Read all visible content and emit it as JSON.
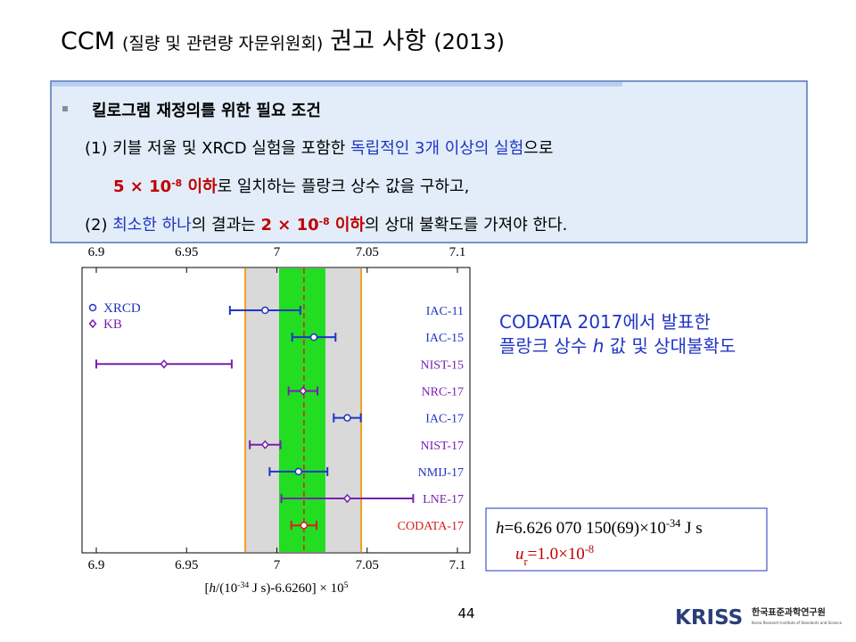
{
  "title": [
    {
      "text": "CCM",
      "size": 27
    },
    {
      "text": "(질량 및 관련량 자문위원회)",
      "size": 19
    },
    {
      "text": "권고 사항",
      "size": 27
    },
    {
      "text": "(2013)",
      "size": 24
    }
  ],
  "box": {
    "heading": "킬로그램 재정의를 위한 필요 조건",
    "lines": [
      [
        {
          "text": "(1) 키블 저울 및 XRCD 실험을 포함한 ",
          "style": "normal"
        },
        {
          "text": "독립적인 3개 이상의 실험",
          "style": "blue"
        },
        {
          "text": "으로",
          "style": "normal"
        }
      ],
      [
        {
          "text": "5 × 10",
          "style": "red"
        },
        {
          "text": "-8",
          "style": "red-sup"
        },
        {
          "text": " 이하",
          "style": "red"
        },
        {
          "text": "로 일치하는 플랑크 상수 값을 구하고,",
          "style": "normal"
        }
      ],
      [
        {
          "text": "(2) ",
          "style": "normal"
        },
        {
          "text": "최소한 하나",
          "style": "blue"
        },
        {
          "text": "의 결과는 ",
          "style": "normal"
        },
        {
          "text": "2 × 10",
          "style": "red"
        },
        {
          "text": "-8",
          "style": "red-sup"
        },
        {
          "text": " 이하",
          "style": "red"
        },
        {
          "text": "의 상대 불확도를 가져야 한다.",
          "style": "normal"
        }
      ]
    ]
  },
  "note": [
    [
      {
        "text": "CODATA 2017에서 발표한",
        "style": "normal"
      }
    ],
    [
      {
        "text": "플랑크 상수 ",
        "style": "normal"
      },
      {
        "text": "h",
        "style": "italic"
      },
      {
        "text": " 값 및 상대불확도",
        "style": "normal"
      }
    ]
  ],
  "result": [
    [
      {
        "text": "h",
        "style": "italic"
      },
      {
        "text": "=6.626 070 150(69)×10",
        "style": "normal"
      },
      {
        "text": "-34",
        "style": "sup"
      },
      {
        "text": " J s",
        "style": "normal"
      }
    ],
    [
      {
        "text": "u",
        "style": "italic"
      },
      {
        "text": "r",
        "style": "sub"
      },
      {
        "text": "=1.0×10",
        "style": "normal"
      },
      {
        "text": "-8",
        "style": "sup"
      }
    ]
  ],
  "page_number": "44",
  "logo": {
    "mark": "KRISS",
    "name": "한국표준과학연구원",
    "subtitle": "Korea Research Institute of Standards and Science"
  },
  "chart_data": {
    "type": "errorbar",
    "categories": [
      "IAC-11",
      "IAC-15",
      "NIST-15",
      "NRC-17",
      "IAC-17",
      "NIST-17",
      "NMIJ-17",
      "LNE-17",
      "CODATA-17"
    ],
    "values": [
      6.9935,
      7.0205,
      6.9375,
      7.0145,
      7.039,
      6.9935,
      7.012,
      7.039,
      7.015
    ],
    "errors": [
      0.0195,
      0.012,
      0.0375,
      0.008,
      0.0075,
      0.0085,
      0.016,
      0.0365,
      0.007
    ],
    "colors": [
      "#1f35c4",
      "#1f35c4",
      "#7a1fb0",
      "#7a1fb0",
      "#1f35c4",
      "#7a1fb0",
      "#1f35c4",
      "#7a1fb0",
      "#d42020"
    ],
    "shapes": [
      "circle",
      "circle",
      "diamond",
      "diamond",
      "circle",
      "diamond",
      "circle",
      "diamond",
      "circle"
    ],
    "legend": [
      {
        "name": "XRCD",
        "color": "#1f35c4",
        "shape": "circle"
      },
      {
        "name": "KB",
        "color": "#7a1fb0",
        "shape": "diamond"
      }
    ],
    "band_outer": [
      6.9825,
      7.0467
    ],
    "band_inner": [
      7.0012,
      7.0269
    ],
    "xlim": [
      6.9,
      7.1
    ],
    "xticks": [
      6.9,
      6.95,
      7,
      7.05,
      7.1
    ],
    "xlabel": [
      {
        "text": "[",
        "style": "normal"
      },
      {
        "text": "h",
        "style": "italic"
      },
      {
        "text": "/(10",
        "style": "normal"
      },
      {
        "text": "-34",
        "style": "sup"
      },
      {
        "text": " J s)-6.6260] × 10",
        "style": "normal"
      },
      {
        "text": "5",
        "style": "sup"
      }
    ]
  }
}
